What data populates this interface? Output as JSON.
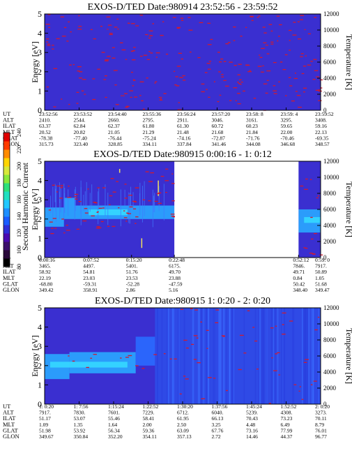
{
  "colorbar": {
    "label": "Second Harmonic Current",
    "ticks": [
      "240",
      "220",
      "200",
      "180",
      "160",
      "140",
      "120",
      "100",
      "80"
    ],
    "colors": [
      "#000000",
      "#2a0a3a",
      "#3b0f6b",
      "#4a0ab0",
      "#2f2fd8",
      "#1a5cff",
      "#1e8fff",
      "#21c8ff",
      "#20e0c0",
      "#2ee07a",
      "#8ae83a",
      "#d8e83a",
      "#ffd500",
      "#ff8c00",
      "#ff3b00",
      "#e00000"
    ]
  },
  "colors": {
    "background": "#3a2fd0",
    "light_band": "#2aa8ff",
    "cyan_band": "#35d8ff",
    "speckle": "#d01a30",
    "gap": "#ffffff"
  },
  "row_labels": [
    "UT",
    "ALT",
    "ILAT",
    "MLT",
    "GLAT",
    "GLON"
  ],
  "chart_data": [
    {
      "type": "heatmap",
      "title": "EXOS-D/TED   Date:980914  23:52:56 - 23:59:52",
      "ylabel": "Energy [eV]",
      "y2label": "Temperature [K]",
      "ylim": [
        0,
        5
      ],
      "y2lim": [
        0,
        12000
      ],
      "yticks": [
        "0",
        "1",
        "2",
        "3",
        "4",
        "5"
      ],
      "y2ticks": [
        "0",
        "2000",
        "4000",
        "6000",
        "8000",
        "10000",
        "12000"
      ],
      "gaps": [],
      "table": [
        [
          "23:52:56",
          "23:53:52",
          "23:54:40",
          "23:55:36",
          "23:56:24",
          "23:57:20",
          "23:58: 8",
          "23:59: 4",
          "23:59:52"
        ],
        [
          "2410.",
          "2544.",
          "2660.",
          "2795.",
          "2911.",
          "3046.",
          "3161.",
          "3295.",
          "3408."
        ],
        [
          "63.37",
          "62.84",
          "62.37",
          "61.80",
          "61.30",
          "60.72",
          "60.23",
          "59.65",
          "59.16"
        ],
        [
          "20.52",
          "20.82",
          "21.05",
          "21.29",
          "21.48",
          "21.68",
          "21.84",
          "22.00",
          "22.13"
        ],
        [
          "-78.38",
          "-77.40",
          "-76.44",
          "-75.24",
          "-74.16",
          "-72.87",
          "-71.76",
          "-70.46",
          "-69.35"
        ],
        [
          "315.73",
          "323.40",
          "328.85",
          "334.11",
          "337.84",
          "341.46",
          "344.08",
          "346.68",
          "348.57"
        ]
      ]
    },
    {
      "type": "heatmap",
      "title": "EXOS-D/TED   Date:980915  0:00:16 - 1: 0:12",
      "ylabel": "Energy [eV]",
      "y2label": "Temperature [K]",
      "ylim": [
        0,
        5
      ],
      "y2lim": [
        0,
        12000
      ],
      "yticks": [
        "0",
        "1",
        "2",
        "3",
        "4",
        "5"
      ],
      "y2ticks": [
        "0",
        "2000",
        "4000",
        "6000",
        "8000",
        "10000",
        "12000"
      ],
      "gaps": [
        [
          0.47,
          0.92
        ]
      ],
      "table": [
        [
          "0:00:16",
          "0:07:52",
          "0:15:20",
          "0:22:48",
          "0:52:12",
          "0:59: 0"
        ],
        [
          "3465.",
          "4497.",
          "5401.",
          "6175.",
          "7846.",
          "7917."
        ],
        [
          "58.92",
          "54.81",
          "51.76",
          "49.70",
          "49.71",
          "50.89"
        ],
        [
          "22.19",
          "23.03",
          "23.53",
          "23.88",
          "0.84",
          "1.05"
        ],
        [
          "-68.80",
          "-59.31",
          "-52.28",
          "-47.59",
          "50.42",
          "51.68"
        ],
        [
          "349.42",
          "358.91",
          "2.86",
          "5.16",
          "348.40",
          "349.47"
        ]
      ]
    },
    {
      "type": "heatmap",
      "title": "EXOS-D/TED   Date:980915  1: 0:20 - 2: 0:20",
      "ylabel": "Energy [eV]",
      "y2label": "Temperature [K]",
      "ylim": [
        0,
        5
      ],
      "y2lim": [
        0,
        12000
      ],
      "yticks": [
        "0",
        "1",
        "2",
        "3",
        "4",
        "5"
      ],
      "y2ticks": [
        "0",
        "2000",
        "4000",
        "6000",
        "8000",
        "10000",
        "12000"
      ],
      "gaps": [],
      "table": [
        [
          "1: 0:20",
          "1: 7:56",
          "1:15:24",
          "1:22:52",
          "1:30:20",
          "1:37:56",
          "1:45:24",
          "1:52:52",
          "2: 0:20"
        ],
        [
          "7917.",
          "7830.",
          "7601.",
          "7229.",
          "6712.",
          "6040.",
          "5239.",
          "4308.",
          "3273."
        ],
        [
          "51.17",
          "53.07",
          "55.46",
          "58.41",
          "61.95",
          "66.13",
          "70.43",
          "73.23",
          "70.11"
        ],
        [
          "1.09",
          "1.35",
          "1.64",
          "2.00",
          "2.50",
          "3.25",
          "4.48",
          "6.49",
          "8.79"
        ],
        [
          "51.98",
          "53.92",
          "56.34",
          "59.36",
          "63.09",
          "67.76",
          "73.16",
          "77.99",
          "76.01"
        ],
        [
          "349.67",
          "350.84",
          "352.20",
          "354.11",
          "357.13",
          "2.72",
          "14.46",
          "44.37",
          "96.77"
        ]
      ]
    }
  ]
}
